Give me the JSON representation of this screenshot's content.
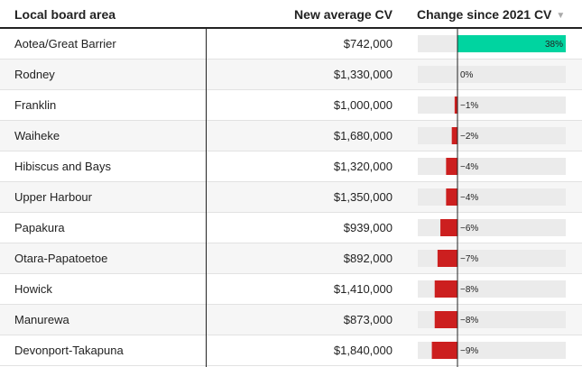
{
  "header": {
    "area_label": "Local board area",
    "cv_label": "New average CV",
    "change_label": "Change since 2021 CV",
    "sort_icon": "triangle-down-icon"
  },
  "colors": {
    "positive": "#00d4a0",
    "negative": "#cc1f1f",
    "track": "#ebebeb",
    "axis": "#222222"
  },
  "chart_data": {
    "type": "bar",
    "title": "",
    "xlabel": "Change since 2021 CV",
    "ylabel": "",
    "xlim": [
      -9,
      38
    ],
    "categories": [
      "Aotea/Great Barrier",
      "Rodney",
      "Franklin",
      "Waiheke",
      "Hibiscus and Bays",
      "Upper Harbour",
      "Papakura",
      "Otara-Papatoetoe",
      "Howick",
      "Manurewa",
      "Devonport-Takapuna"
    ],
    "values": [
      38,
      0,
      -1,
      -2,
      -4,
      -4,
      -6,
      -7,
      -8,
      -8,
      -9
    ],
    "value_labels": [
      "38%",
      "0%",
      "−1%",
      "−2%",
      "−4%",
      "−4%",
      "−6%",
      "−7%",
      "−8%",
      "−8%",
      "−9%"
    ],
    "cv_values": [
      "$742,000",
      "$1,330,000",
      "$1,000,000",
      "$1,680,000",
      "$1,320,000",
      "$1,350,000",
      "$939,000",
      "$892,000",
      "$1,410,000",
      "$873,000",
      "$1,840,000"
    ]
  }
}
